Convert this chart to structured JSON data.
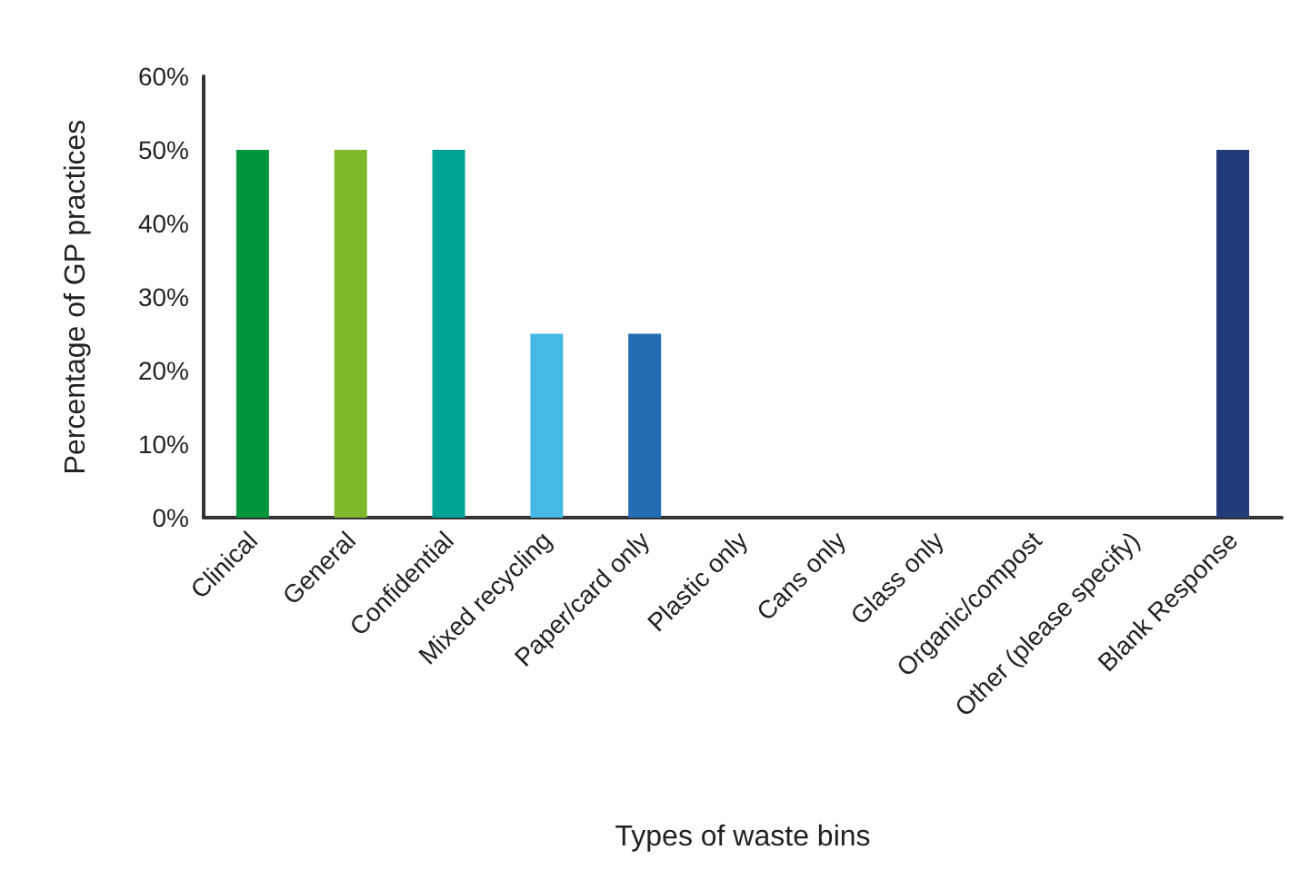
{
  "chart_data": {
    "type": "bar",
    "xlabel": "Types of waste bins",
    "ylabel": "Percentage of GP practices",
    "categories": [
      "Clinical",
      "General",
      "Confidential",
      "Mixed recycling",
      "Paper/card only",
      "Plastic only",
      "Cans only",
      "Glass only",
      "Organic/compost",
      "Other (please specify)",
      "Blank Response"
    ],
    "values": [
      50,
      50,
      50,
      25,
      25,
      0,
      0,
      0,
      0,
      0,
      50
    ],
    "colors": [
      "#00963c",
      "#7fb82a",
      "#00a396",
      "#45b8e6",
      "#226db3",
      null,
      null,
      null,
      null,
      null,
      "#213a78"
    ],
    "ylim": [
      0,
      60
    ],
    "yticks": [
      {
        "value": 0,
        "label": "0%"
      },
      {
        "value": 10,
        "label": "10%"
      },
      {
        "value": 20,
        "label": "20%"
      },
      {
        "value": 30,
        "label": "30%"
      },
      {
        "value": 40,
        "label": "40%"
      },
      {
        "value": 50,
        "label": "50%"
      },
      {
        "value": 60,
        "label": "60%"
      }
    ],
    "grid": false
  }
}
